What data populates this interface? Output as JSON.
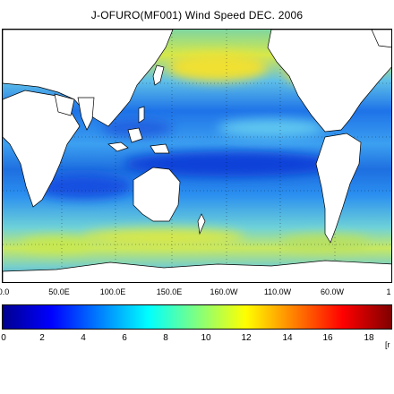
{
  "title": "J-OFURO(MF001) Wind Speed DEC. 2006",
  "map": {
    "lon_labels": [
      "0.0",
      "50.0E",
      "100.0E",
      "150.0E",
      "160.0W",
      "110.0W",
      "60.0W",
      "1"
    ],
    "land_color": "#ffffff",
    "grid": true
  },
  "colorbar": {
    "colors": [
      "#00008f",
      "#0000ff",
      "#0080ff",
      "#00ffff",
      "#80ff80",
      "#ffff00",
      "#ff8000",
      "#ff0000",
      "#800000"
    ],
    "ticks": [
      "0",
      "2",
      "4",
      "6",
      "8",
      "10",
      "12",
      "14",
      "16",
      "18"
    ],
    "units": "[r"
  }
}
